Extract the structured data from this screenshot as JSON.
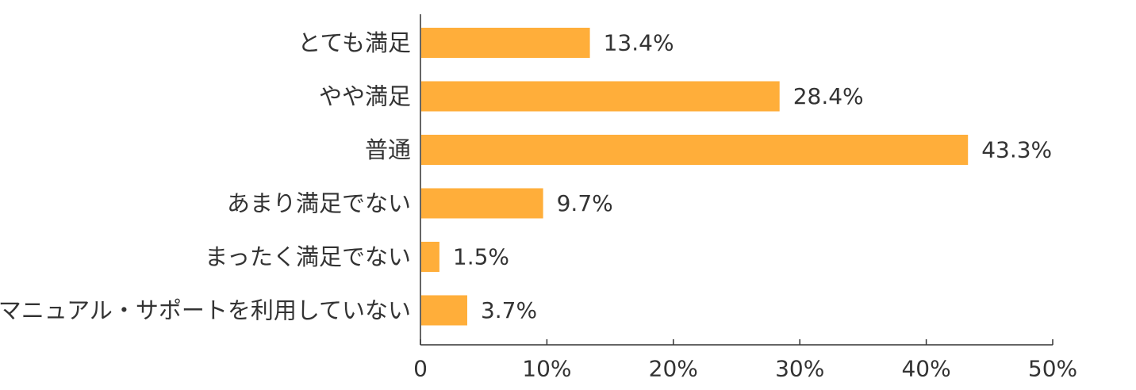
{
  "chart_data": {
    "type": "bar",
    "orientation": "horizontal",
    "categories": [
      "とても満足",
      "やや満足",
      "普通",
      "あまり満足でない",
      "まったく満足でない",
      "マニュアル・サポートを利用していない"
    ],
    "values": [
      13.4,
      28.4,
      43.3,
      9.7,
      1.5,
      3.7
    ],
    "value_labels": [
      "13.4%",
      "28.4%",
      "43.3%",
      "9.7%",
      "1.5%",
      "3.7%"
    ],
    "xlim": [
      0,
      50
    ],
    "xticks": [
      0,
      10,
      20,
      30,
      40,
      50
    ],
    "xtick_labels": [
      "0",
      "10%",
      "20%",
      "30%",
      "40%",
      "50%"
    ],
    "title": "",
    "xlabel": "",
    "ylabel": "",
    "bar_color": "#FFAE3A",
    "axis_color": "#333333",
    "text_color": "#333333",
    "grid": false,
    "legend": false
  }
}
